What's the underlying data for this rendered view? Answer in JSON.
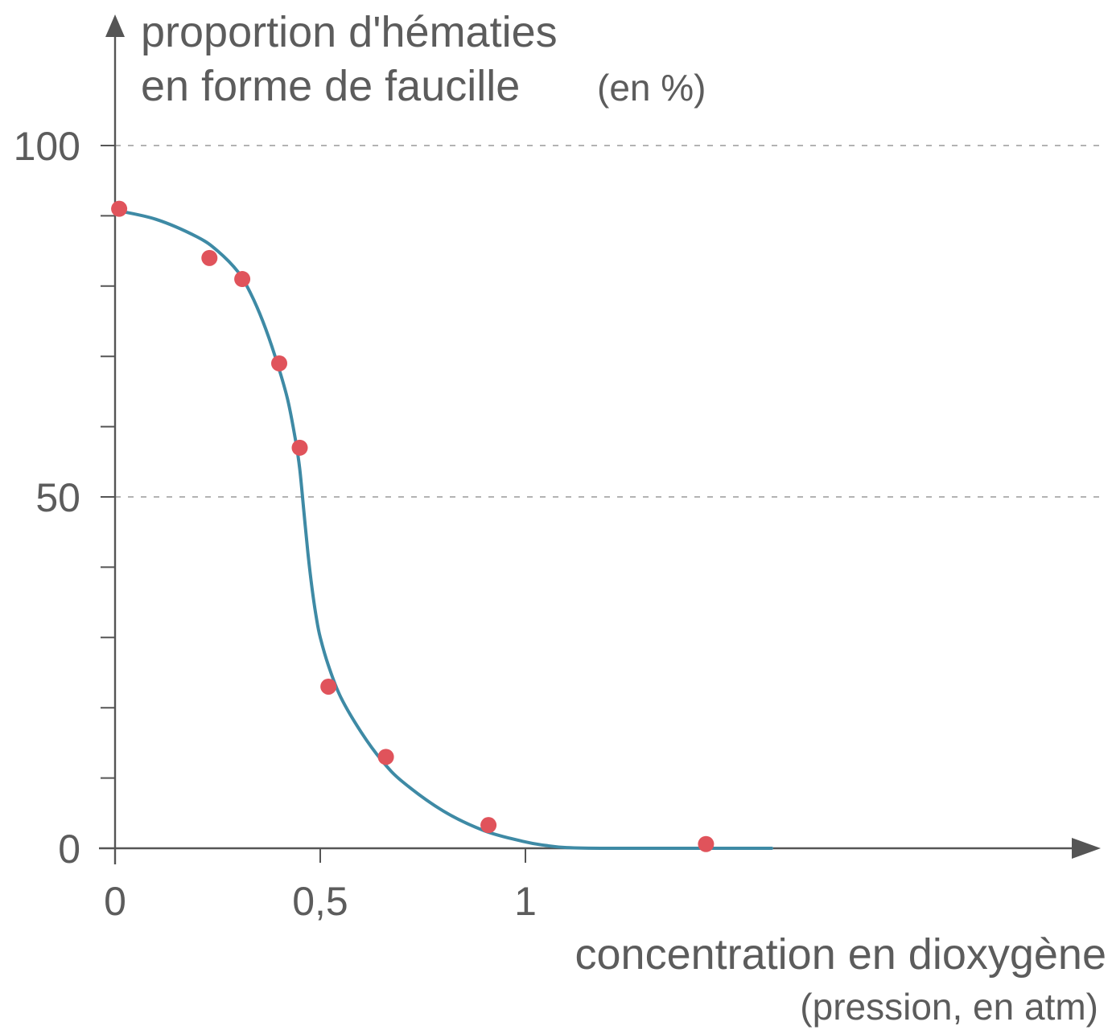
{
  "colors": {
    "axis": "#555555",
    "curve": "#3e8aa5",
    "points": "#e0535b",
    "grid": "#9a9a9a",
    "text": "#5c5c5c"
  },
  "chart_data": {
    "type": "scatter",
    "title": "",
    "ylabel_line1": "proportion d'hématies",
    "ylabel_line2": "en forme de faucille",
    "ylabel_unit": "(en %)",
    "xlabel": "concentration en dioxygène",
    "xlabel_unit": "(pression, en atm)",
    "xlim": [
      0,
      2.4
    ],
    "ylim": [
      0,
      100
    ],
    "grid": "dashed horizontal lines at 50 and 100",
    "x_ticks": [
      0,
      0.5,
      1
    ],
    "x_tick_labels": [
      "0",
      "0,5",
      "1"
    ],
    "y_ticks": [
      0,
      10,
      20,
      30,
      40,
      50,
      60,
      70,
      80,
      90,
      100
    ],
    "y_tick_labels": [
      {
        "value": 100,
        "label": "100"
      },
      {
        "value": 50,
        "label": "50"
      },
      {
        "value": 0,
        "label": "0"
      }
    ],
    "series": [
      {
        "type": "scatter",
        "x": [
          0.01,
          0.23,
          0.31,
          0.4,
          0.45,
          0.52,
          0.66,
          0.91,
          1.44
        ],
        "y": [
          91,
          84,
          81,
          69,
          57,
          23,
          13,
          3.3,
          0.6
        ]
      },
      {
        "type": "line",
        "x": [
          0,
          0.1,
          0.2,
          0.25,
          0.3,
          0.33,
          0.36,
          0.39,
          0.42,
          0.44,
          0.45,
          0.46,
          0.47,
          0.48,
          0.49,
          0.5,
          0.52,
          0.55,
          0.6,
          0.65,
          0.7,
          0.8,
          0.9,
          1.0,
          1.05,
          1.1,
          1.2,
          1.4,
          1.6
        ],
        "y": [
          90.8,
          89.5,
          87,
          85,
          82,
          79,
          75,
          70,
          64,
          58,
          54,
          48,
          42,
          37,
          33,
          30,
          26,
          21.5,
          16.5,
          12.5,
          9.5,
          5.3,
          2.5,
          0.9,
          0.4,
          0.1,
          0,
          0,
          0
        ]
      }
    ]
  }
}
